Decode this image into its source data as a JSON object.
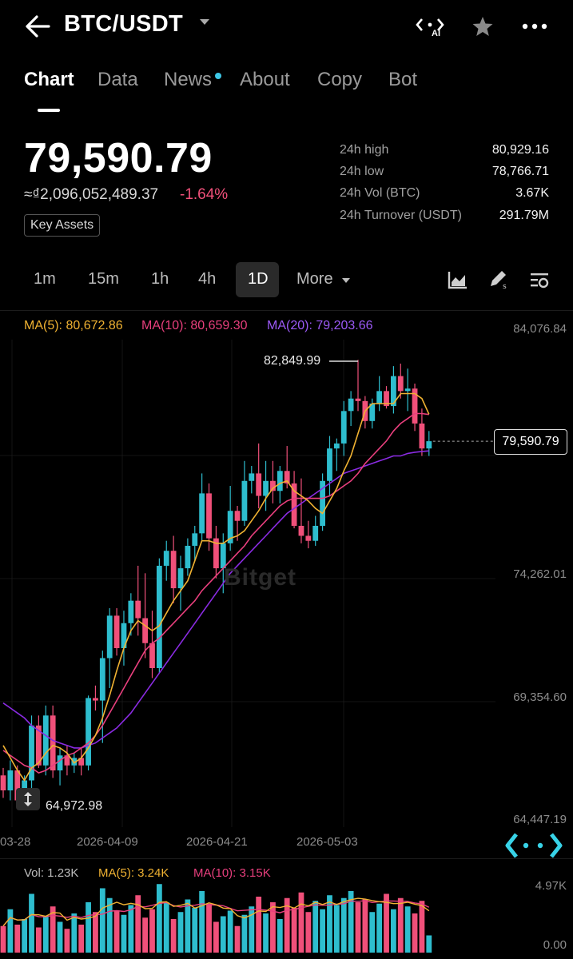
{
  "header": {
    "pair": "BTC/USDT",
    "ai_badge": "AI"
  },
  "tabs": [
    {
      "label": "Chart",
      "active": true
    },
    {
      "label": "Data"
    },
    {
      "label": "News",
      "dot": true
    },
    {
      "label": "About"
    },
    {
      "label": "Copy"
    },
    {
      "label": "Bot"
    }
  ],
  "ticker": {
    "price": "79,590.79",
    "fiat": "≈₫2,096,052,489.37",
    "change": "-1.64%",
    "key_assets": "Key Assets"
  },
  "stats": [
    {
      "label": "24h high",
      "value": "80,929.16"
    },
    {
      "label": "24h low",
      "value": "78,766.71"
    },
    {
      "label": "24h Vol (BTC)",
      "value": "3.67K"
    },
    {
      "label": "24h Turnover (USDT)",
      "value": "291.79M"
    }
  ],
  "timeframes": [
    {
      "label": "1m"
    },
    {
      "label": "15m"
    },
    {
      "label": "1h"
    },
    {
      "label": "4h"
    },
    {
      "label": "1D",
      "active": true
    }
  ],
  "more_label": "More",
  "indicators": {
    "ma5": "MA(5): 80,672.86",
    "ma10": "MA(10): 80,659.30",
    "ma20": "MA(20): 79,203.66"
  },
  "colors": {
    "up": "#2ebdce",
    "down": "#f0507a",
    "ma5": "#f0b232",
    "ma10": "#e83f7d",
    "ma20": "#8a2be2"
  },
  "price_axis": [
    "84,076.84",
    "74,262.01",
    "69,354.60",
    "64,447.19"
  ],
  "date_axis": [
    "03-28",
    "2026-04-09",
    "2026-04-21",
    "2026-05-03"
  ],
  "annotations": {
    "high": "82,849.99",
    "low": "64,972.98",
    "last": "79,590.79"
  },
  "volume": {
    "vol": "Vol: 1.23K",
    "ma5": "MA(5): 3.24K",
    "ma10": "MA(10): 3.15K",
    "axis_top": "4.97K",
    "axis_bottom": "0.00"
  },
  "watermark": "Bitget",
  "chart_data": {
    "type": "candlestick",
    "candles": [
      [
        66200,
        66500,
        65300,
        65600
      ],
      [
        65600,
        66800,
        65200,
        66400
      ],
      [
        66400,
        66600,
        64973,
        65200
      ],
      [
        65200,
        66200,
        65000,
        66000
      ],
      [
        66000,
        68600,
        65600,
        68200
      ],
      [
        68200,
        68600,
        66500,
        66600
      ],
      [
        66600,
        69000,
        66200,
        68600
      ],
      [
        68600,
        69000,
        66100,
        66400
      ],
      [
        66400,
        67300,
        65800,
        67000
      ],
      [
        67000,
        67400,
        66200,
        66600
      ],
      [
        66600,
        67100,
        66300,
        66900
      ],
      [
        66900,
        67300,
        66200,
        66600
      ],
      [
        66600,
        69400,
        66400,
        69300
      ],
      [
        69300,
        69800,
        68800,
        69200
      ],
      [
        69200,
        71200,
        67500,
        70900
      ],
      [
        70900,
        72900,
        69700,
        72600
      ],
      [
        72600,
        72900,
        71000,
        71300
      ],
      [
        71300,
        72800,
        70600,
        72300
      ],
      [
        72300,
        73500,
        71800,
        73200
      ],
      [
        73200,
        74600,
        71800,
        72500
      ],
      [
        72500,
        74300,
        70900,
        71500
      ],
      [
        71500,
        72800,
        70100,
        70500
      ],
      [
        70500,
        74900,
        70300,
        74600
      ],
      [
        74600,
        75600,
        74000,
        75200
      ],
      [
        75200,
        75800,
        73100,
        73700
      ],
      [
        73700,
        75000,
        72800,
        74500
      ],
      [
        74500,
        75700,
        74200,
        75400
      ],
      [
        75400,
        76200,
        74800,
        75900
      ],
      [
        75900,
        78300,
        75600,
        77500
      ],
      [
        77500,
        77900,
        75200,
        75700
      ],
      [
        75700,
        76200,
        74100,
        74500
      ],
      [
        74500,
        75900,
        73500,
        75500
      ],
      [
        75500,
        77800,
        75200,
        76800
      ],
      [
        76800,
        77000,
        75600,
        76400
      ],
      [
        76400,
        78800,
        76200,
        78000
      ],
      [
        78000,
        78600,
        77500,
        78300
      ],
      [
        78300,
        79500,
        76900,
        77400
      ],
      [
        77400,
        78800,
        76800,
        78000
      ],
      [
        78000,
        78800,
        77100,
        77600
      ],
      [
        77600,
        78600,
        77100,
        78400
      ],
      [
        78400,
        79400,
        77700,
        77900
      ],
      [
        77900,
        78400,
        76100,
        76200
      ],
      [
        76200,
        78100,
        75500,
        75800
      ],
      [
        75800,
        76400,
        75300,
        75600
      ],
      [
        75600,
        76600,
        75400,
        76200
      ],
      [
        76200,
        78300,
        76000,
        78000
      ],
      [
        78000,
        79800,
        77400,
        79300
      ],
      [
        79300,
        79700,
        78400,
        79500
      ],
      [
        79500,
        81200,
        79000,
        80800
      ],
      [
        80800,
        81600,
        80200,
        81300
      ],
      [
        81300,
        82850,
        80800,
        81200
      ],
      [
        81200,
        81400,
        80100,
        80400
      ],
      [
        80400,
        81300,
        80100,
        81100
      ],
      [
        81100,
        82200,
        80800,
        81600
      ],
      [
        81600,
        81800,
        80900,
        81000
      ],
      [
        81000,
        82600,
        80700,
        82200
      ],
      [
        82200,
        82700,
        81300,
        81600
      ],
      [
        81600,
        82500,
        80800,
        81700
      ],
      [
        81700,
        81900,
        80000,
        80300
      ],
      [
        80300,
        80900,
        79000,
        79300
      ],
      [
        79300,
        80000,
        79000,
        79591
      ]
    ],
    "ma5": [
      67400,
      66900,
      66400,
      66000,
      66500,
      66700,
      67100,
      67400,
      67300,
      67100,
      66700,
      66900,
      67300,
      67800,
      68500,
      69400,
      70400,
      71300,
      72000,
      72400,
      72200,
      72000,
      72200,
      72700,
      73200,
      73600,
      74000,
      74800,
      75600,
      75600,
      75500,
      75500,
      75700,
      75800,
      76000,
      76400,
      76800,
      77300,
      77700,
      77900,
      78000,
      77600,
      77400,
      77200,
      76900,
      76700,
      77200,
      77700,
      78400,
      79000,
      79900,
      80800,
      81100,
      81100,
      81100,
      81100,
      81500,
      81500,
      81500,
      81300,
      80673
    ],
    "ma10": [
      67200,
      67000,
      66800,
      66600,
      66500,
      66300,
      66400,
      66600,
      66800,
      67000,
      67100,
      67300,
      67500,
      67800,
      68200,
      68700,
      69200,
      69700,
      70200,
      70700,
      71200,
      71500,
      71700,
      72000,
      72300,
      72600,
      72900,
      73200,
      73600,
      73900,
      74200,
      74500,
      74800,
      75100,
      75400,
      75800,
      76100,
      76400,
      76700,
      77000,
      77200,
      77300,
      77300,
      77300,
      77300,
      77300,
      77400,
      77600,
      77800,
      78000,
      78300,
      78700,
      79000,
      79300,
      79600,
      80000,
      80300,
      80500,
      80700,
      80700,
      80659
    ],
    "ma20": [
      69100,
      68900,
      68700,
      68500,
      68200,
      68000,
      67800,
      67600,
      67500,
      67400,
      67300,
      67300,
      67400,
      67500,
      67700,
      67900,
      68100,
      68400,
      68700,
      69100,
      69500,
      69900,
      70300,
      70700,
      71100,
      71500,
      71900,
      72300,
      72700,
      73100,
      73500,
      73900,
      74300,
      74600,
      74900,
      75200,
      75500,
      75800,
      76100,
      76400,
      76700,
      76900,
      77100,
      77300,
      77500,
      77700,
      77900,
      78100,
      78300,
      78400,
      78500,
      78600,
      78700,
      78800,
      78900,
      79000,
      79000,
      79100,
      79150,
      79180,
      79204
    ],
    "volume": [
      1.9,
      3.1,
      2.0,
      2.4,
      4.2,
      1.8,
      2.6,
      3.3,
      2.2,
      1.7,
      2.8,
      2.0,
      3.6,
      2.9,
      4.6,
      3.9,
      3.0,
      2.7,
      3.4,
      4.1,
      2.5,
      3.1,
      4.9,
      3.6,
      2.4,
      2.9,
      3.8,
      3.2,
      4.4,
      3.5,
      2.2,
      2.6,
      3.0,
      1.9,
      2.7,
      3.3,
      4.0,
      2.8,
      3.6,
      2.4,
      3.9,
      3.2,
      4.3,
      2.9,
      3.7,
      3.1,
      4.1,
      3.4,
      3.9,
      4.4,
      3.6,
      3.8,
      2.9,
      3.5,
      4.2,
      3.1,
      3.9,
      3.3,
      2.8,
      3.7,
      1.23
    ],
    "ylim": [
      64447.19,
      84076.84
    ],
    "vol_ylim": [
      0,
      4.97
    ]
  }
}
